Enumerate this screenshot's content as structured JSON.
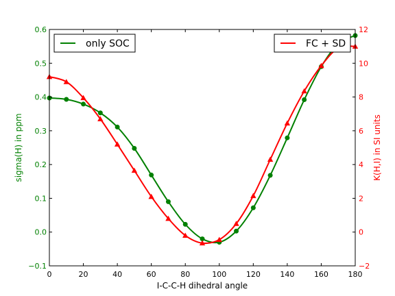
{
  "chart_data": {
    "type": "line",
    "xlabel": "I-C-C-H dihedral angle",
    "x_ticks": [
      0,
      20,
      40,
      60,
      80,
      100,
      120,
      140,
      160,
      180
    ],
    "xlim": [
      0,
      180
    ],
    "left_axis": {
      "label": "sigma(H) in ppm",
      "color": "#008000",
      "ylim": [
        -0.1,
        0.6
      ],
      "ticks": [
        -0.1,
        0.0,
        0.1,
        0.2,
        0.3,
        0.4,
        0.5,
        0.6
      ],
      "tick_labels": [
        "−0.1",
        "0.0",
        "0.1",
        "0.2",
        "0.3",
        "0.4",
        "0.5",
        "0.6"
      ]
    },
    "right_axis": {
      "label": "K(H,I) in SI units",
      "color": "#ff0000",
      "ylim": [
        -2,
        12
      ],
      "ticks": [
        -2,
        0,
        2,
        4,
        6,
        8,
        10,
        12
      ],
      "tick_labels": [
        "−2",
        "0",
        "2",
        "4",
        "6",
        "8",
        "10",
        "12"
      ]
    },
    "series": [
      {
        "name": "only SOC",
        "axis": "left",
        "color": "#008000",
        "marker": "circle",
        "x": [
          0,
          10,
          20,
          30,
          40,
          50,
          60,
          70,
          80,
          90,
          100,
          110,
          120,
          130,
          140,
          150,
          160,
          170,
          180
        ],
        "y": [
          0.397,
          0.393,
          0.379,
          0.353,
          0.311,
          0.248,
          0.169,
          0.09,
          0.023,
          -0.02,
          -0.03,
          0.003,
          0.072,
          0.168,
          0.279,
          0.392,
          0.49,
          0.558,
          0.582
        ]
      },
      {
        "name": "FC + SD",
        "axis": "right",
        "color": "#ff0000",
        "marker": "triangle",
        "x": [
          0,
          10,
          20,
          30,
          40,
          50,
          60,
          70,
          80,
          90,
          100,
          110,
          120,
          130,
          140,
          150,
          160,
          170,
          180
        ],
        "y": [
          9.2,
          8.9,
          7.95,
          6.7,
          5.2,
          3.65,
          2.1,
          0.8,
          -0.2,
          -0.65,
          -0.45,
          0.5,
          2.15,
          4.3,
          6.45,
          8.35,
          9.85,
          10.9,
          11.0
        ]
      }
    ],
    "legend": [
      {
        "label": "only SOC",
        "placement": "upper-left"
      },
      {
        "label": "FC + SD",
        "placement": "upper-right"
      }
    ],
    "grid": false
  }
}
